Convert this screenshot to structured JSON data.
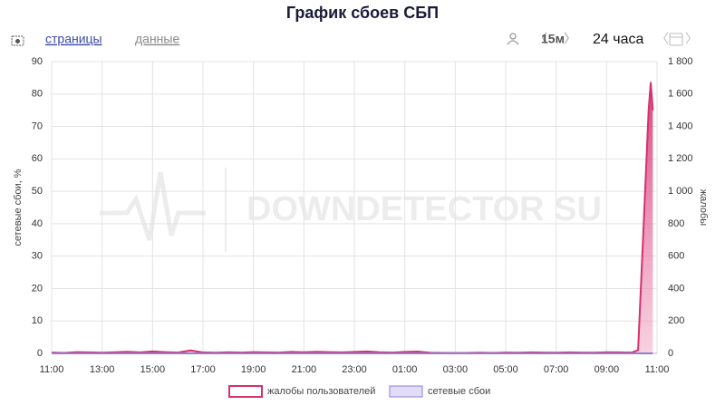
{
  "chart_data": {
    "type": "line",
    "title": "График сбоев СБП",
    "tabs": [
      "страницы",
      "данные"
    ],
    "interval": "15м",
    "period": "24 часа",
    "watermark": "DOWNDETECTOR SU",
    "y_label": "сетевые сбои, %",
    "y2_label": "жалобы",
    "x": [
      "11:00",
      "11:30",
      "12:00",
      "12:30",
      "13:00",
      "13:30",
      "14:00",
      "14:30",
      "15:00",
      "15:30",
      "16:00",
      "16:30",
      "17:00",
      "17:30",
      "18:00",
      "18:30",
      "19:00",
      "19:30",
      "20:00",
      "20:30",
      "21:00",
      "21:30",
      "22:00",
      "22:30",
      "23:00",
      "23:30",
      "00:00",
      "00:30",
      "01:00",
      "01:30",
      "02:00",
      "02:30",
      "03:00",
      "03:30",
      "04:00",
      "04:30",
      "05:00",
      "05:30",
      "06:00",
      "06:30",
      "07:00",
      "07:30",
      "08:00",
      "08:30",
      "09:00",
      "09:30",
      "10:00",
      "10:15",
      "10:30",
      "10:40",
      "10:45",
      "10:50"
    ],
    "series": [
      {
        "name": "жалобы пользователей",
        "color": "#d6306f",
        "axis": "y2",
        "values": [
          5,
          3,
          8,
          6,
          4,
          7,
          10,
          6,
          12,
          8,
          5,
          18,
          6,
          4,
          7,
          5,
          8,
          6,
          5,
          9,
          7,
          10,
          8,
          6,
          9,
          12,
          7,
          5,
          9,
          11,
          4,
          3,
          2,
          3,
          4,
          3,
          5,
          4,
          6,
          5,
          4,
          6,
          5,
          4,
          7,
          6,
          5,
          20,
          900,
          1500,
          1670,
          1500
        ]
      },
      {
        "name": "сетевые сбои",
        "color": "#8e7fd6",
        "values": [
          0,
          0,
          0,
          0,
          0,
          0,
          0,
          0,
          0,
          0,
          0,
          0,
          0,
          0,
          0,
          0,
          0,
          0,
          0,
          0,
          0,
          0,
          0,
          0,
          0,
          0,
          0,
          0,
          0,
          0,
          0,
          0,
          0,
          0,
          0,
          0,
          0,
          0,
          0,
          0,
          0,
          0,
          0,
          0,
          0,
          0,
          0,
          0,
          0,
          0,
          0,
          0
        ]
      }
    ],
    "xticks": [
      "11:00",
      "13:00",
      "15:00",
      "17:00",
      "19:00",
      "21:00",
      "23:00",
      "01:00",
      "03:00",
      "05:00",
      "07:00",
      "09:00",
      "11:00"
    ],
    "ylim": [
      0,
      90
    ],
    "yticks": [
      0,
      10,
      20,
      30,
      40,
      50,
      60,
      70,
      80,
      90
    ],
    "y2lim": [
      0,
      1800
    ],
    "y2ticks": [
      0,
      200,
      400,
      600,
      800,
      {
        "value": 1000,
        "label": "1 000"
      },
      {
        "value": 1200,
        "label": "1 200"
      },
      {
        "value": 1400,
        "label": "1 400"
      },
      {
        "value": 1600,
        "label": "1 600"
      },
      {
        "value": 1800,
        "label": "1 800"
      }
    ],
    "grid": true
  }
}
